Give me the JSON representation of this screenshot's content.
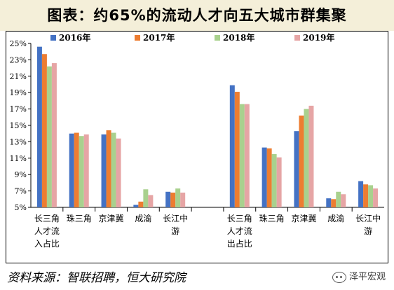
{
  "title": "图表：约65%的流动人才向五大城市群集聚",
  "source": "资料来源：智联招聘，恒大研究院",
  "watermark": "泽平宏观",
  "colors": {
    "title_band": "#f4efd9",
    "series": [
      "#4472c4",
      "#ed7d31",
      "#a9d18e",
      "#e6a5a5"
    ]
  },
  "chart_data": {
    "type": "bar",
    "ylim": [
      5,
      25
    ],
    "yticks": [
      "5%",
      "7%",
      "9%",
      "11%",
      "13%",
      "15%",
      "17%",
      "19%",
      "21%",
      "23%",
      "25%"
    ],
    "legend_position": "top",
    "grid": false,
    "groups": [
      {
        "name": "长三角人才流入占比",
        "categories": [
          [
            "长三角",
            "人才流",
            "入占比"
          ],
          [
            "珠三角"
          ],
          [
            "京津冀"
          ],
          [
            "成渝"
          ],
          [
            "长江中",
            "游"
          ]
        ]
      },
      {
        "name": "长三角人才流出占比",
        "categories": [
          [
            "长三角",
            "人才流",
            "出占比"
          ],
          [
            "珠三角"
          ],
          [
            "京津冀"
          ],
          [
            "成渝"
          ],
          [
            "长江中",
            "游"
          ]
        ]
      }
    ],
    "series": [
      {
        "name": "2016年",
        "values": [
          24.6,
          14.0,
          13.9,
          5.3,
          6.9,
          19.9,
          12.3,
          14.3,
          6.1,
          8.2
        ]
      },
      {
        "name": "2017年",
        "values": [
          23.7,
          14.1,
          14.4,
          5.7,
          6.8,
          19.1,
          12.2,
          16.2,
          6.0,
          7.8
        ]
      },
      {
        "name": "2018年",
        "values": [
          22.2,
          13.7,
          14.1,
          7.2,
          7.3,
          17.6,
          11.5,
          17.0,
          6.9,
          7.7
        ]
      },
      {
        "name": "2019年",
        "values": [
          22.6,
          13.9,
          13.4,
          6.5,
          6.8,
          17.6,
          11.1,
          17.4,
          6.6,
          7.3
        ]
      }
    ]
  }
}
